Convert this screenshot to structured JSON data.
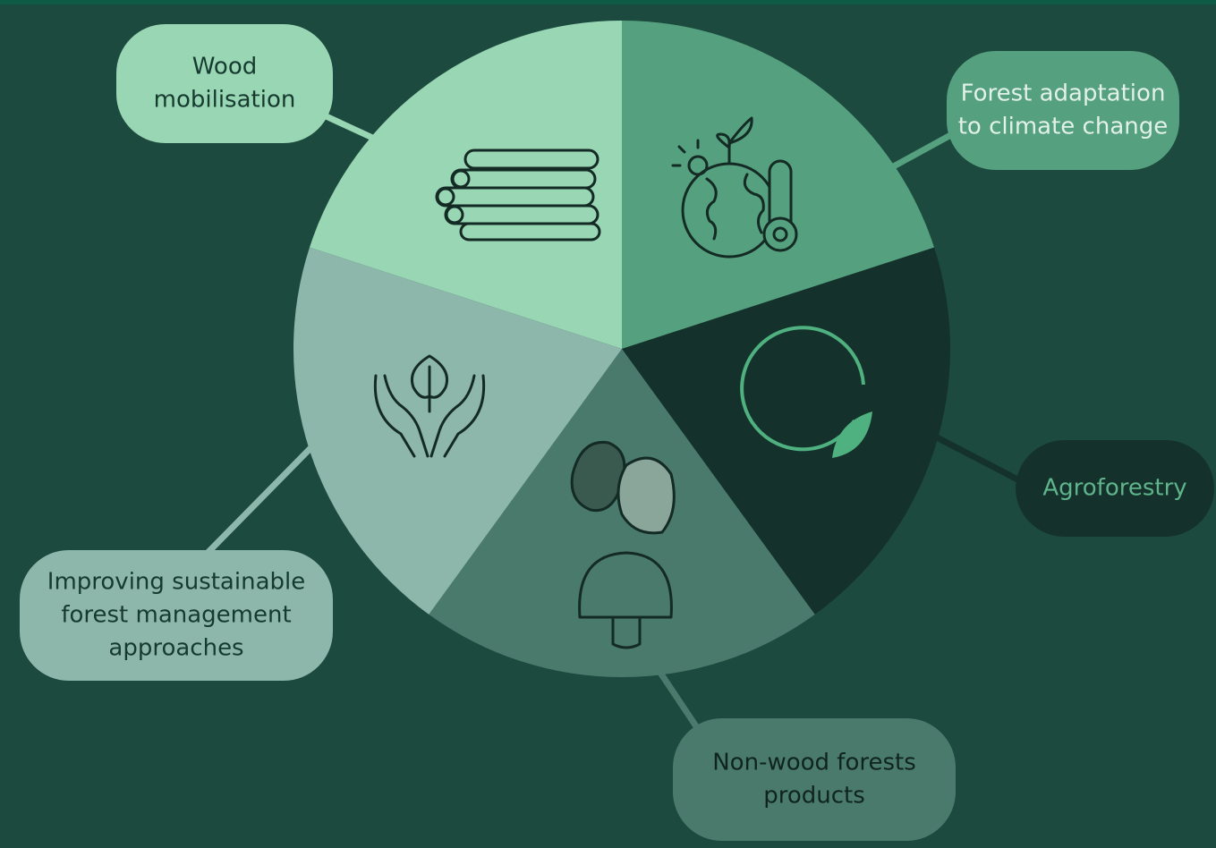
{
  "nodes": [
    {
      "lines": [
        "Wood",
        "mobilisation"
      ]
    },
    {
      "lines": [
        "Forest adaptation",
        "to climate change"
      ]
    },
    {
      "lines": [
        "Agroforestry"
      ]
    },
    {
      "lines": [
        "Non-wood forests",
        "products"
      ]
    },
    {
      "lines": [
        "Improving sustainable",
        "forest management",
        "approaches"
      ]
    }
  ]
}
